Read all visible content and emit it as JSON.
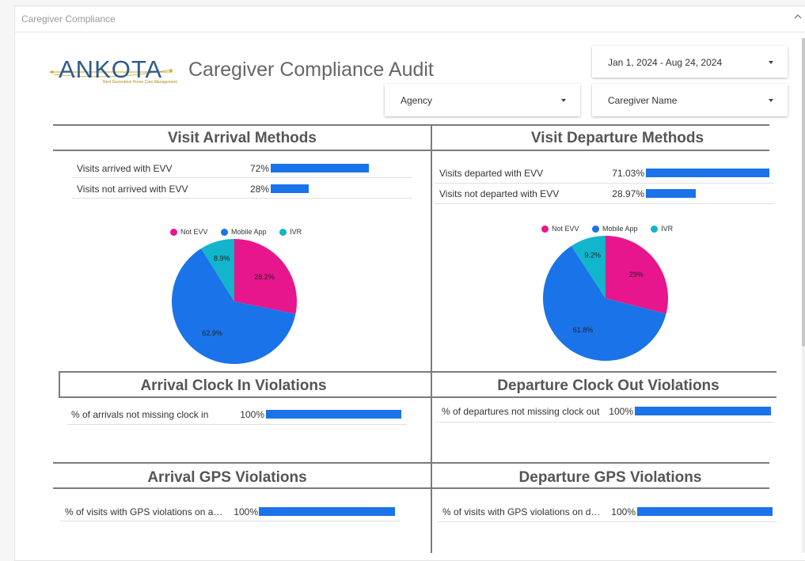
{
  "panel": {
    "title": "Caregiver Compliance"
  },
  "header": {
    "logo_text": "ANKOTA",
    "logo_tagline": "Next Generation Home Care Management",
    "title": "Caregiver Compliance Audit"
  },
  "filters": {
    "date_range": "Jan 1, 2024 - Aug 24, 2024",
    "agency": "Agency",
    "caregiver": "Caregiver Name"
  },
  "colors": {
    "bar": "#1a73e8",
    "not_evv": "#e8168c",
    "mobile_app": "#1a73e8",
    "ivr": "#12b5cb"
  },
  "arrival": {
    "title": "Visit Arrival Methods",
    "rows": [
      {
        "label": "Visits arrived with EVV",
        "value": "72%",
        "pct": 72
      },
      {
        "label": "Visits not arrived with EVV",
        "value": "28%",
        "pct": 28
      }
    ],
    "legend": [
      "Not EVV",
      "Mobile App",
      "IVR"
    ],
    "pie": {
      "labels": [
        "28.2%",
        "62.9%",
        "8.9%"
      ],
      "values": [
        28.2,
        62.9,
        8.9
      ]
    }
  },
  "departure": {
    "title": "Visit Departure Methods",
    "rows": [
      {
        "label": "Visits departed with EVV",
        "value": "71.03%",
        "pct": 71.03
      },
      {
        "label": "Visits not departed with EVV",
        "value": "28.97%",
        "pct": 28.97
      }
    ],
    "legend": [
      "Not EVV",
      "Mobile App",
      "IVR"
    ],
    "pie": {
      "labels": [
        "29%",
        "61.8%",
        "9.2%"
      ],
      "values": [
        29,
        61.8,
        9.2
      ]
    }
  },
  "clock_in": {
    "title": "Arrival Clock In Violations",
    "label": "% of arrivals not missing clock in",
    "value": "100%",
    "pct": 100
  },
  "clock_out": {
    "title": "Departure Clock Out Violations",
    "label": "% of departures not missing clock out",
    "value": "100%",
    "pct": 100
  },
  "gps_arrival": {
    "title": "Arrival GPS Violations",
    "label": "% of visits with GPS violations on arri...",
    "value": "100%",
    "pct": 100
  },
  "gps_departure": {
    "title": "Departure GPS Violations",
    "label": "% of visits with GPS violations on dep...",
    "value": "100%",
    "pct": 100
  }
}
